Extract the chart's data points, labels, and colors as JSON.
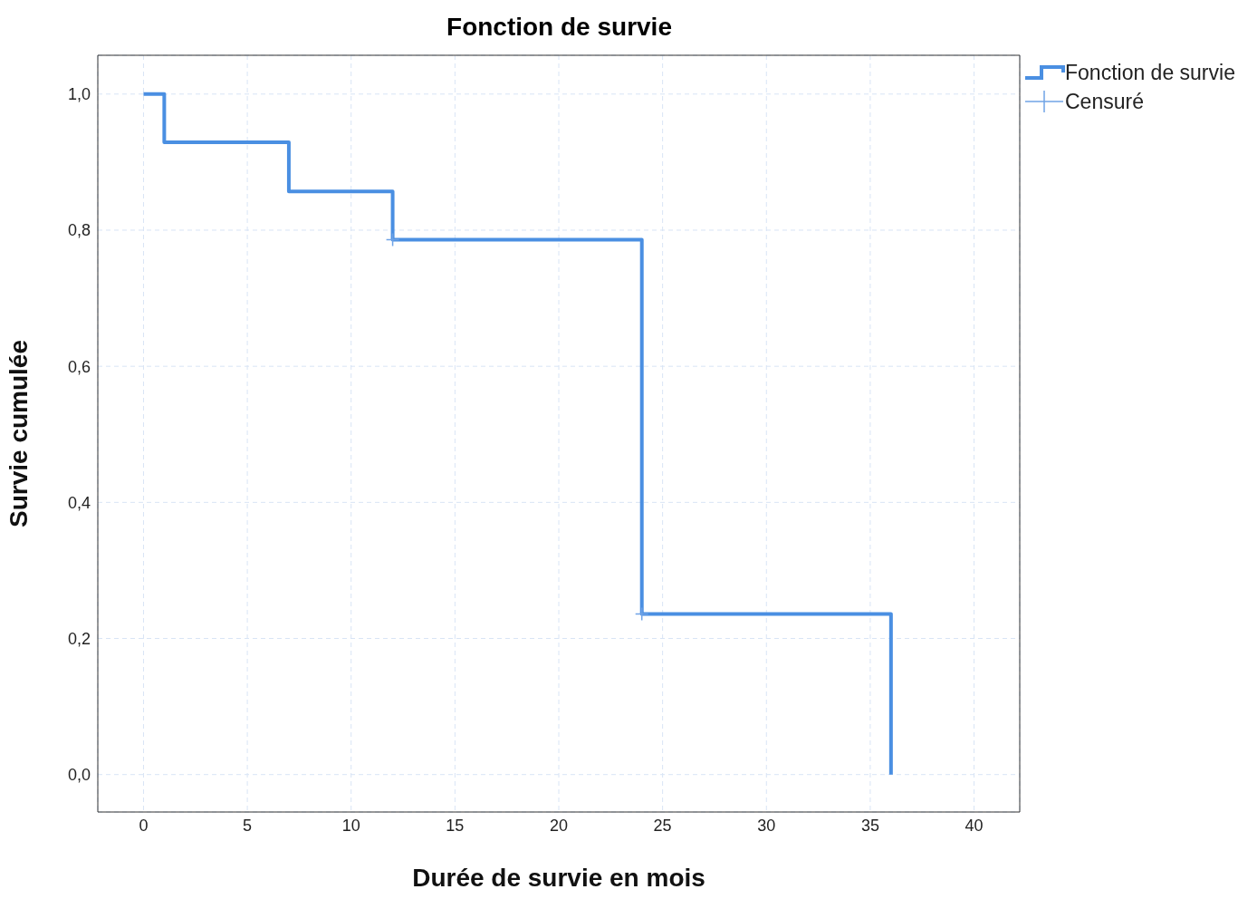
{
  "chart_data": {
    "type": "step",
    "title": "Fonction de survie",
    "xlabel": "Durée  de survie en mois",
    "ylabel": "Survie cumulée",
    "series": [
      {
        "name": "Fonction de survie",
        "color": "#4a8fe2",
        "x": [
          0,
          1,
          7,
          12,
          24,
          36
        ],
        "values": [
          1,
          0.929,
          0.857,
          0.786,
          0.236,
          0
        ]
      },
      {
        "name": "Censuré",
        "type": "scatter",
        "color": "#6fa3e6",
        "marker": "cross",
        "x": [
          12,
          24
        ],
        "values": [
          0.786,
          0.236
        ]
      }
    ],
    "xlim": [
      -2.2,
      42.2
    ],
    "xticks": [
      0,
      5,
      10,
      15,
      20,
      25,
      30,
      35,
      40
    ],
    "ylim": [
      -0.055,
      1.057
    ],
    "yticks": [
      {
        "value": 0,
        "label": "0,0"
      },
      {
        "value": 0.2,
        "label": "0,2"
      },
      {
        "value": 0.4,
        "label": "0,4"
      },
      {
        "value": 0.6,
        "label": "0,6"
      },
      {
        "value": 0.8,
        "label": "0,8"
      },
      {
        "value": 1,
        "label": "1,0"
      }
    ],
    "grid": true,
    "legend": "top right"
  }
}
